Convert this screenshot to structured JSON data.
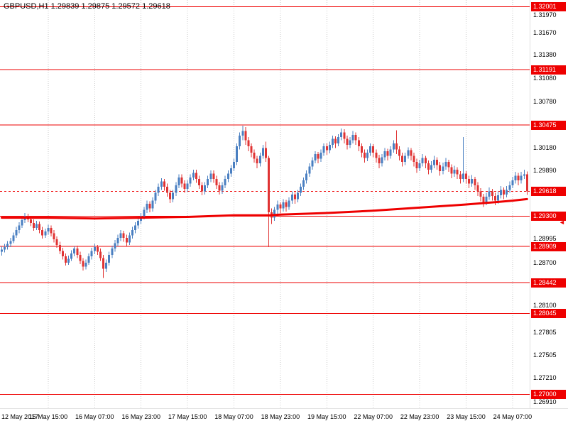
{
  "title": "GBPUSD,H1 1.29839 1.29875 1.29572 1.29618",
  "symbol": "GBPUSD",
  "timeframe": "H1",
  "colors": {
    "background": "#ffffff",
    "bull": "#4a7fc1",
    "bear": "#e03333",
    "level": "#ee0000",
    "badge_bg": "#ee0000",
    "badge_text": "#ffffff",
    "grid": "#c9c9c9",
    "axis_text": "#000000",
    "ma": "#ee0000",
    "bid_line": "#ee0000"
  },
  "chart_data": {
    "type": "candlestick",
    "title": "GBPUSD,H1",
    "last_ohlc": {
      "open": 1.29839,
      "high": 1.29875,
      "low": 1.29572,
      "close": 1.29618
    },
    "y_axis": {
      "min": 1.2682,
      "max": 1.3209,
      "labels": [
        {
          "price": 1.3197,
          "text": "1.31970"
        },
        {
          "price": 1.3167,
          "text": "1.31670"
        },
        {
          "price": 1.3138,
          "text": "1.31380"
        },
        {
          "price": 1.3108,
          "text": "1.31080"
        },
        {
          "price": 1.3078,
          "text": "1.30780"
        },
        {
          "price": 1.3018,
          "text": "1.30180"
        },
        {
          "price": 1.2989,
          "text": "1.29890"
        },
        {
          "price": 1.28995,
          "text": "1.28995"
        },
        {
          "price": 1.287,
          "text": "1.28700"
        },
        {
          "price": 1.281,
          "text": "1.28100"
        },
        {
          "price": 1.27805,
          "text": "1.27805"
        },
        {
          "price": 1.27505,
          "text": "1.27505"
        },
        {
          "price": 1.2721,
          "text": "1.27210"
        },
        {
          "price": 1.2691,
          "text": "1.26910"
        }
      ]
    },
    "x_axis": {
      "bars_per_gridline": 16,
      "labels": [
        {
          "bar": 0,
          "text": "12 May 2017"
        },
        {
          "bar": 16,
          "text": "15 May 15:00"
        },
        {
          "bar": 32,
          "text": "16 May 07:00"
        },
        {
          "bar": 48,
          "text": "16 May 23:00"
        },
        {
          "bar": 64,
          "text": "17 May 15:00"
        },
        {
          "bar": 80,
          "text": "18 May 07:00"
        },
        {
          "bar": 96,
          "text": "18 May 23:00"
        },
        {
          "bar": 112,
          "text": "19 May 15:00"
        },
        {
          "bar": 128,
          "text": "22 May 07:00"
        },
        {
          "bar": 144,
          "text": "22 May 23:00"
        },
        {
          "bar": 160,
          "text": "23 May 15:00"
        },
        {
          "bar": 176,
          "text": "24 May 07:00"
        }
      ]
    },
    "levels": [
      {
        "price": 1.32001,
        "text": "1.32001"
      },
      {
        "price": 1.31191,
        "text": "1.31191"
      },
      {
        "price": 1.30475,
        "text": "1.30475"
      },
      {
        "price": 1.293,
        "text": "1.29300"
      },
      {
        "price": 1.28909,
        "text": "1.28909"
      },
      {
        "price": 1.28442,
        "text": "1.28442"
      },
      {
        "price": 1.28045,
        "text": "1.28045"
      },
      {
        "price": 1.27,
        "text": "1.27000"
      }
    ],
    "bid": {
      "price": 1.29618,
      "text": "1.29618"
    },
    "scale_marker": {
      "symbol": "◄",
      "price": 1.2922
    },
    "ma": {
      "name": "moving-average",
      "width": 3,
      "points": [
        [
          0,
          1.2928
        ],
        [
          16,
          1.2928
        ],
        [
          32,
          1.2927
        ],
        [
          48,
          1.2928
        ],
        [
          64,
          1.2929
        ],
        [
          80,
          1.2931
        ],
        [
          92,
          1.2931
        ],
        [
          96,
          1.2932
        ],
        [
          112,
          1.2934
        ],
        [
          128,
          1.2937
        ],
        [
          144,
          1.2941
        ],
        [
          160,
          1.2945
        ],
        [
          170,
          1.2948
        ],
        [
          176,
          1.295
        ],
        [
          181,
          1.2952
        ]
      ]
    },
    "candles": [
      [
        1.2884,
        1.2891,
        1.2879,
        1.2887
      ],
      [
        1.2887,
        1.2894,
        1.2883,
        1.289
      ],
      [
        1.289,
        1.2898,
        1.2887,
        1.2894
      ],
      [
        1.2894,
        1.2902,
        1.289,
        1.2898
      ],
      [
        1.2898,
        1.2909,
        1.2895,
        1.2905
      ],
      [
        1.2905,
        1.2916,
        1.2902,
        1.2912
      ],
      [
        1.2912,
        1.2922,
        1.2908,
        1.2918
      ],
      [
        1.2918,
        1.2929,
        1.2915,
        1.2925
      ],
      [
        1.2925,
        1.2934,
        1.2921,
        1.293
      ],
      [
        1.293,
        1.2933,
        1.2922,
        1.2926
      ],
      [
        1.2926,
        1.293,
        1.2917,
        1.2921
      ],
      [
        1.2921,
        1.2926,
        1.2911,
        1.2915
      ],
      [
        1.2915,
        1.2924,
        1.2912,
        1.292
      ],
      [
        1.292,
        1.2923,
        1.2908,
        1.2912
      ],
      [
        1.2912,
        1.2916,
        1.2901,
        1.2905
      ],
      [
        1.2905,
        1.2914,
        1.2902,
        1.291
      ],
      [
        1.291,
        1.2919,
        1.2906,
        1.2915
      ],
      [
        1.2915,
        1.2918,
        1.2904,
        1.2908
      ],
      [
        1.2908,
        1.2912,
        1.2896,
        1.29
      ],
      [
        1.29,
        1.2904,
        1.2889,
        1.2893
      ],
      [
        1.2893,
        1.2897,
        1.2881,
        1.2885
      ],
      [
        1.2885,
        1.2889,
        1.2874,
        1.2878
      ],
      [
        1.2878,
        1.2882,
        1.2866,
        1.287
      ],
      [
        1.287,
        1.2879,
        1.2867,
        1.2875
      ],
      [
        1.2875,
        1.2886,
        1.2872,
        1.2882
      ],
      [
        1.2882,
        1.2891,
        1.2878,
        1.2888
      ],
      [
        1.2888,
        1.2892,
        1.2876,
        1.288
      ],
      [
        1.288,
        1.2884,
        1.2868,
        1.2872
      ],
      [
        1.2872,
        1.2876,
        1.286,
        1.2865
      ],
      [
        1.2865,
        1.2874,
        1.2861,
        1.287
      ],
      [
        1.287,
        1.2882,
        1.2867,
        1.2878
      ],
      [
        1.2878,
        1.2889,
        1.2874,
        1.2885
      ],
      [
        1.2885,
        1.2894,
        1.2881,
        1.289
      ],
      [
        1.289,
        1.2893,
        1.288,
        1.2884
      ],
      [
        1.2884,
        1.2888,
        1.2872,
        1.2876
      ],
      [
        1.2876,
        1.288,
        1.285,
        1.2862
      ],
      [
        1.2862,
        1.2874,
        1.2858,
        1.287
      ],
      [
        1.287,
        1.2884,
        1.2866,
        1.288
      ],
      [
        1.288,
        1.2892,
        1.2876,
        1.2888
      ],
      [
        1.2888,
        1.2899,
        1.2884,
        1.2895
      ],
      [
        1.2895,
        1.2906,
        1.2891,
        1.2902
      ],
      [
        1.2902,
        1.2912,
        1.2898,
        1.2908
      ],
      [
        1.2908,
        1.2911,
        1.2897,
        1.2902
      ],
      [
        1.2902,
        1.2906,
        1.2891,
        1.2896
      ],
      [
        1.2896,
        1.2909,
        1.2893,
        1.2905
      ],
      [
        1.2905,
        1.2916,
        1.2901,
        1.2912
      ],
      [
        1.2912,
        1.2922,
        1.2908,
        1.2918
      ],
      [
        1.2918,
        1.2928,
        1.2914,
        1.2924
      ],
      [
        1.2924,
        1.2934,
        1.292,
        1.293
      ],
      [
        1.293,
        1.2942,
        1.2926,
        1.2938
      ],
      [
        1.2938,
        1.295,
        1.2934,
        1.2946
      ],
      [
        1.2946,
        1.2949,
        1.2935,
        1.294
      ],
      [
        1.294,
        1.2954,
        1.2936,
        1.295
      ],
      [
        1.295,
        1.2964,
        1.2946,
        1.296
      ],
      [
        1.296,
        1.2972,
        1.2956,
        1.2968
      ],
      [
        1.2968,
        1.2979,
        1.2964,
        1.2975
      ],
      [
        1.2975,
        1.2978,
        1.2963,
        1.2968
      ],
      [
        1.2968,
        1.2972,
        1.2955,
        1.296
      ],
      [
        1.296,
        1.2964,
        1.2947,
        1.2952
      ],
      [
        1.2952,
        1.2964,
        1.2948,
        1.296
      ],
      [
        1.296,
        1.2974,
        1.2956,
        1.297
      ],
      [
        1.297,
        1.2984,
        1.2966,
        1.298
      ],
      [
        1.298,
        1.2984,
        1.2967,
        1.2972
      ],
      [
        1.2972,
        1.2976,
        1.296,
        1.2965
      ],
      [
        1.2965,
        1.2976,
        1.2961,
        1.2972
      ],
      [
        1.2972,
        1.2984,
        1.2968,
        1.298
      ],
      [
        1.298,
        1.299,
        1.2976,
        1.2986
      ],
      [
        1.2986,
        1.299,
        1.2973,
        1.2978
      ],
      [
        1.2978,
        1.2982,
        1.2965,
        1.297
      ],
      [
        1.297,
        1.2974,
        1.2957,
        1.2962
      ],
      [
        1.2962,
        1.2974,
        1.2958,
        1.297
      ],
      [
        1.297,
        1.2982,
        1.2966,
        1.2978
      ],
      [
        1.2978,
        1.2989,
        1.2974,
        1.2985
      ],
      [
        1.2985,
        1.2989,
        1.2973,
        1.2978
      ],
      [
        1.2978,
        1.2982,
        1.2965,
        1.297
      ],
      [
        1.297,
        1.2974,
        1.2958,
        1.2963
      ],
      [
        1.2963,
        1.2974,
        1.2959,
        1.297
      ],
      [
        1.297,
        1.2982,
        1.2966,
        1.2978
      ],
      [
        1.2978,
        1.2989,
        1.2974,
        1.2985
      ],
      [
        1.2985,
        1.2996,
        1.2981,
        1.2992
      ],
      [
        1.2992,
        1.3004,
        1.2988,
        1.3
      ],
      [
        1.3,
        1.3024,
        1.2996,
        1.302
      ],
      [
        1.302,
        1.3038,
        1.3016,
        1.3034
      ],
      [
        1.3034,
        1.3047,
        1.3028,
        1.304
      ],
      [
        1.304,
        1.3045,
        1.3022,
        1.3028
      ],
      [
        1.3028,
        1.3032,
        1.3014,
        1.302
      ],
      [
        1.302,
        1.3024,
        1.3006,
        1.3012
      ],
      [
        1.3012,
        1.3016,
        1.2999,
        1.3004
      ],
      [
        1.3004,
        1.3008,
        1.2992,
        1.2998
      ],
      [
        1.2998,
        1.3012,
        1.2994,
        1.3008
      ],
      [
        1.3008,
        1.3022,
        1.3004,
        1.3018
      ],
      [
        1.3018,
        1.3026,
        1.3,
        1.3005
      ],
      [
        1.3005,
        1.3008,
        1.289,
        1.2935
      ],
      [
        1.2935,
        1.294,
        1.292,
        1.2928
      ],
      [
        1.2928,
        1.2942,
        1.2924,
        1.2938
      ],
      [
        1.2938,
        1.295,
        1.2933,
        1.2945
      ],
      [
        1.2945,
        1.2948,
        1.2934,
        1.294
      ],
      [
        1.294,
        1.2952,
        1.2936,
        1.2948
      ],
      [
        1.2948,
        1.2951,
        1.2936,
        1.2942
      ],
      [
        1.2942,
        1.2954,
        1.2938,
        1.295
      ],
      [
        1.295,
        1.2962,
        1.2946,
        1.2958
      ],
      [
        1.2958,
        1.2961,
        1.2946,
        1.2952
      ],
      [
        1.2952,
        1.2964,
        1.2948,
        1.296
      ],
      [
        1.296,
        1.2972,
        1.2956,
        1.2968
      ],
      [
        1.2968,
        1.298,
        1.2964,
        1.2976
      ],
      [
        1.2976,
        1.2989,
        1.2972,
        1.2985
      ],
      [
        1.2985,
        1.2998,
        1.2981,
        1.2994
      ],
      [
        1.2994,
        1.3006,
        1.299,
        1.3002
      ],
      [
        1.3002,
        1.3014,
        1.2998,
        1.301
      ],
      [
        1.301,
        1.3013,
        1.2998,
        1.3004
      ],
      [
        1.3004,
        1.3016,
        1.3,
        1.3012
      ],
      [
        1.3012,
        1.3024,
        1.3008,
        1.302
      ],
      [
        1.302,
        1.3024,
        1.3009,
        1.3015
      ],
      [
        1.3015,
        1.3026,
        1.3011,
        1.3022
      ],
      [
        1.3022,
        1.3034,
        1.3018,
        1.303
      ],
      [
        1.303,
        1.3033,
        1.3018,
        1.3024
      ],
      [
        1.3024,
        1.3036,
        1.302,
        1.3032
      ],
      [
        1.3032,
        1.3043,
        1.3028,
        1.3038
      ],
      [
        1.3038,
        1.3042,
        1.3024,
        1.303
      ],
      [
        1.303,
        1.3034,
        1.3016,
        1.3022
      ],
      [
        1.3022,
        1.3032,
        1.3018,
        1.3028
      ],
      [
        1.3028,
        1.304,
        1.3024,
        1.3035
      ],
      [
        1.3035,
        1.3038,
        1.3022,
        1.3028
      ],
      [
        1.3028,
        1.3032,
        1.3014,
        1.302
      ],
      [
        1.302,
        1.3024,
        1.3006,
        1.3012
      ],
      [
        1.3012,
        1.3016,
        1.2999,
        1.3005
      ],
      [
        1.3005,
        1.3016,
        1.3001,
        1.3012
      ],
      [
        1.3012,
        1.3024,
        1.3008,
        1.302
      ],
      [
        1.302,
        1.3023,
        1.3006,
        1.3012
      ],
      [
        1.3012,
        1.3016,
        1.2999,
        1.3005
      ],
      [
        1.3005,
        1.3009,
        1.2992,
        1.2998
      ],
      [
        1.2998,
        1.301,
        1.2994,
        1.3006
      ],
      [
        1.3006,
        1.3018,
        1.3002,
        1.3014
      ],
      [
        1.3014,
        1.3017,
        1.3002,
        1.3008
      ],
      [
        1.3008,
        1.302,
        1.3004,
        1.3016
      ],
      [
        1.3016,
        1.3028,
        1.3012,
        1.3024
      ],
      [
        1.3024,
        1.3041,
        1.301,
        1.3016
      ],
      [
        1.3016,
        1.302,
        1.3002,
        1.3008
      ],
      [
        1.3008,
        1.3012,
        1.2994,
        1.3
      ],
      [
        1.3,
        1.3012,
        1.2996,
        1.3008
      ],
      [
        1.3008,
        1.3019,
        1.3004,
        1.3015
      ],
      [
        1.3015,
        1.3018,
        1.3002,
        1.3008
      ],
      [
        1.3008,
        1.3012,
        1.2994,
        1.3
      ],
      [
        1.3,
        1.3004,
        1.2986,
        1.2992
      ],
      [
        1.2992,
        1.3003,
        1.2988,
        1.2998
      ],
      [
        1.2998,
        1.301,
        1.2994,
        1.3005
      ],
      [
        1.3005,
        1.3008,
        1.2992,
        1.2998
      ],
      [
        1.2998,
        1.3002,
        1.2984,
        1.299
      ],
      [
        1.299,
        1.3001,
        1.2986,
        1.2996
      ],
      [
        1.2996,
        1.3008,
        1.2992,
        1.3003
      ],
      [
        1.3003,
        1.3006,
        1.299,
        1.2996
      ],
      [
        1.2996,
        1.3,
        1.2982,
        1.2988
      ],
      [
        1.2988,
        1.2999,
        1.2984,
        1.2994
      ],
      [
        1.2994,
        1.3005,
        1.299,
        1.3
      ],
      [
        1.3,
        1.3003,
        1.2987,
        1.2993
      ],
      [
        1.2993,
        1.2997,
        1.2979,
        1.2985
      ],
      [
        1.2985,
        1.2995,
        1.2981,
        1.299
      ],
      [
        1.299,
        1.2993,
        1.2978,
        1.2984
      ],
      [
        1.2984,
        1.2988,
        1.2972,
        1.2978
      ],
      [
        1.2978,
        1.3032,
        1.2974,
        1.2985
      ],
      [
        1.2985,
        1.2988,
        1.2972,
        1.2978
      ],
      [
        1.2978,
        1.2982,
        1.2966,
        1.2972
      ],
      [
        1.2972,
        1.2983,
        1.2968,
        1.2978
      ],
      [
        1.2978,
        1.2981,
        1.2964,
        1.297
      ],
      [
        1.297,
        1.2974,
        1.2956,
        1.2962
      ],
      [
        1.2962,
        1.2966,
        1.2949,
        1.2955
      ],
      [
        1.2955,
        1.2959,
        1.2942,
        1.2948
      ],
      [
        1.2948,
        1.296,
        1.2944,
        1.2955
      ],
      [
        1.2955,
        1.2967,
        1.2951,
        1.2962
      ],
      [
        1.2962,
        1.2965,
        1.295,
        1.2956
      ],
      [
        1.2956,
        1.296,
        1.2944,
        1.295
      ],
      [
        1.295,
        1.2962,
        1.2946,
        1.2957
      ],
      [
        1.2957,
        1.2969,
        1.2953,
        1.2964
      ],
      [
        1.2964,
        1.2967,
        1.2952,
        1.2958
      ],
      [
        1.2958,
        1.2969,
        1.2954,
        1.2964
      ],
      [
        1.2964,
        1.2975,
        1.296,
        1.297
      ],
      [
        1.297,
        1.2981,
        1.2966,
        1.2976
      ],
      [
        1.2976,
        1.2987,
        1.2972,
        1.2982
      ],
      [
        1.2982,
        1.2986,
        1.297,
        1.2976
      ],
      [
        1.2976,
        1.2987,
        1.2972,
        1.2982
      ],
      [
        1.2982,
        1.299,
        1.2978,
        1.29839
      ],
      [
        1.29839,
        1.29875,
        1.29572,
        1.29618
      ]
    ]
  }
}
